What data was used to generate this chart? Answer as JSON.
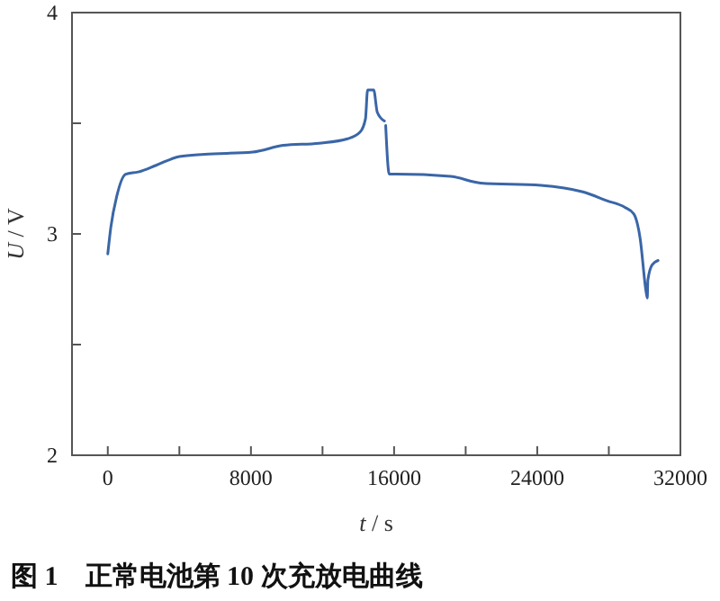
{
  "chart_data": {
    "type": "line",
    "title": "图 1　正常电池第 10 次充放电曲线",
    "xlabel": "t / s",
    "ylabel": "U / V",
    "xlim": [
      -2000,
      32000
    ],
    "ylim": [
      2,
      4
    ],
    "xticks": [
      0,
      {
        "value": 4000,
        "label": null
      },
      8000,
      {
        "value": 12000,
        "label": null
      },
      16000,
      {
        "value": 20000,
        "label": null
      },
      24000,
      {
        "value": 28000,
        "label": null
      },
      32000
    ],
    "yticks": [
      2,
      {
        "value": 2.5,
        "label": null
      },
      3,
      {
        "value": 3.5,
        "label": null
      },
      4
    ],
    "grid": false,
    "marker": "none",
    "line_style": "solid",
    "series": [
      {
        "color": "#3a66a7",
        "x": [
          0,
          170,
          500,
          1000,
          1700,
          2700,
          4000,
          5400,
          8100,
          9800,
          11800,
          13400,
          14100,
          14400,
          14520,
          14860,
          15060,
          15460,
          15500,
          15530,
          15730,
          16130,
          19160,
          20840,
          24200,
          26550,
          27900,
          28900,
          29400,
          29750,
          30080,
          30150,
          30180,
          30420,
          30750
        ],
        "values": [
          2.91,
          3.03,
          3.17,
          3.27,
          3.28,
          3.31,
          3.35,
          3.36,
          3.37,
          3.4,
          3.41,
          3.43,
          3.46,
          3.52,
          3.65,
          3.65,
          3.55,
          3.51,
          null,
          3.49,
          3.27,
          3.27,
          3.26,
          3.23,
          3.22,
          3.19,
          3.15,
          3.12,
          3.09,
          2.98,
          2.74,
          2.71,
          2.79,
          2.86,
          2.88
        ]
      }
    ]
  }
}
